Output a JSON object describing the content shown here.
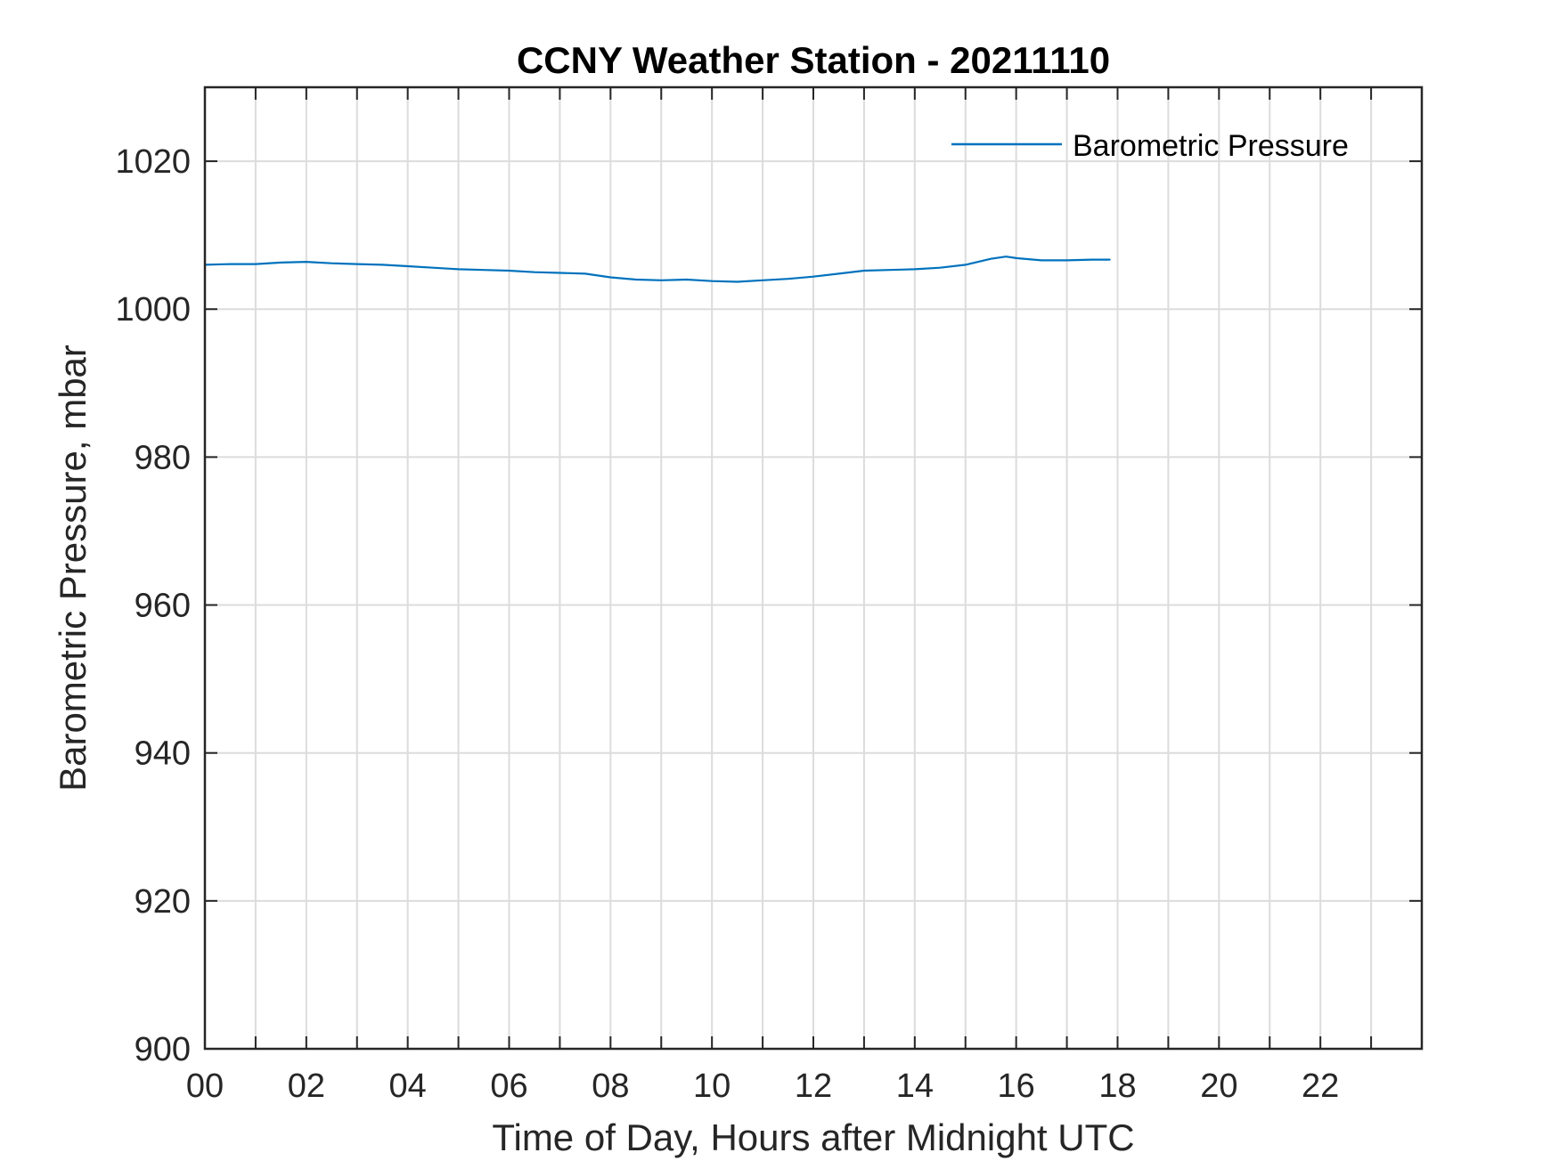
{
  "chart_data": {
    "type": "line",
    "title": "CCNY Weather Station - 20211110",
    "xlabel": "Time of Day, Hours after Midnight UTC",
    "ylabel": "Barometric Pressure, mbar",
    "xlim": [
      0,
      24
    ],
    "ylim": [
      900,
      1030
    ],
    "grid": true,
    "x_major_ticks": [
      0,
      2,
      4,
      6,
      8,
      10,
      12,
      14,
      16,
      18,
      20,
      22
    ],
    "x_tick_labels": [
      "00",
      "02",
      "04",
      "06",
      "08",
      "10",
      "12",
      "14",
      "16",
      "18",
      "20",
      "22"
    ],
    "x_minor_ticks": [
      1,
      3,
      5,
      7,
      9,
      11,
      13,
      15,
      17,
      19,
      21,
      23
    ],
    "y_ticks": [
      900,
      920,
      940,
      960,
      980,
      1000,
      1020
    ],
    "y_tick_labels": [
      "900",
      "920",
      "940",
      "960",
      "980",
      "1000",
      "1020"
    ],
    "legend_position": "top-right",
    "series": [
      {
        "name": "Barometric Pressure",
        "color": "#0072BD",
        "x": [
          0,
          0.5,
          1,
          1.5,
          2,
          2.5,
          3,
          3.5,
          4,
          4.5,
          5,
          5.5,
          6,
          6.5,
          7,
          7.5,
          8,
          8.5,
          9,
          9.5,
          10,
          10.5,
          11,
          11.5,
          12,
          12.5,
          13,
          13.5,
          14,
          14.5,
          15,
          15.5,
          15.8,
          16,
          16.5,
          17,
          17.5,
          17.85
        ],
        "y": [
          1006.0,
          1006.1,
          1006.1,
          1006.3,
          1006.4,
          1006.2,
          1006.1,
          1006.0,
          1005.8,
          1005.6,
          1005.4,
          1005.3,
          1005.2,
          1005.0,
          1004.9,
          1004.8,
          1004.3,
          1004.0,
          1003.9,
          1004.0,
          1003.8,
          1003.7,
          1003.9,
          1004.1,
          1004.4,
          1004.8,
          1005.2,
          1005.3,
          1005.4,
          1005.6,
          1006.0,
          1006.8,
          1007.1,
          1006.9,
          1006.6,
          1006.6,
          1006.7,
          1006.7
        ]
      }
    ]
  }
}
